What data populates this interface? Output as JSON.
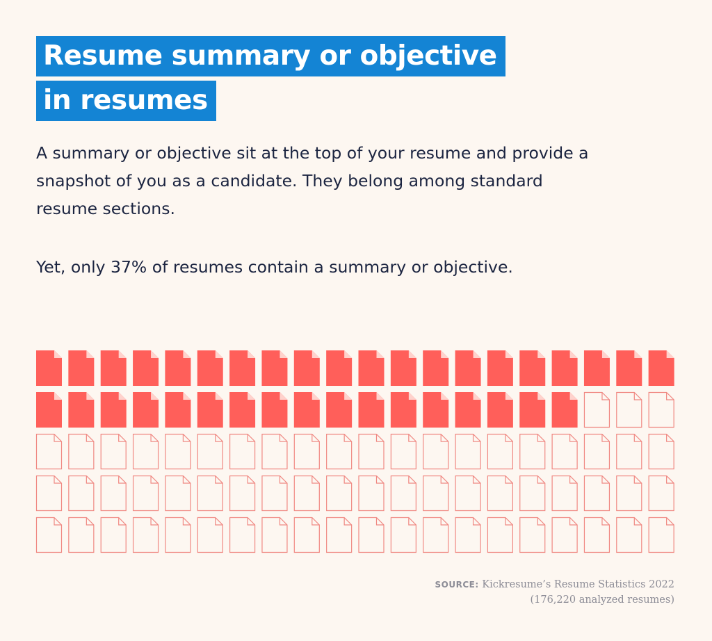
{
  "title": {
    "line1": "Resume summary or objective",
    "line2": "in resumes"
  },
  "description": {
    "para1": "A summary or objective sit at the top of your resume and provide a snapshot of you as a candidate. They belong among standard resume sections.",
    "para2": "Yet, only 37% of resumes contain a summary or objective."
  },
  "chart_data": {
    "type": "icon-array",
    "total_icons": 100,
    "columns": 20,
    "rows": 5,
    "filled_icons": 37,
    "value_percent": 37,
    "icon": "document-icon",
    "filled_color": "#ff5f5a",
    "empty_stroke_color": "#f08882",
    "fold_color": "#ffd2cc"
  },
  "source": {
    "label": "SOURCE:",
    "text": "Kickresume’s Resume Statistics 2022",
    "note": "(176,220 analyzed resumes)"
  },
  "colors": {
    "background": "#fdf7f1",
    "title_bg": "#1484d4",
    "title_text": "#ffffff",
    "body_text": "#1b2440"
  }
}
